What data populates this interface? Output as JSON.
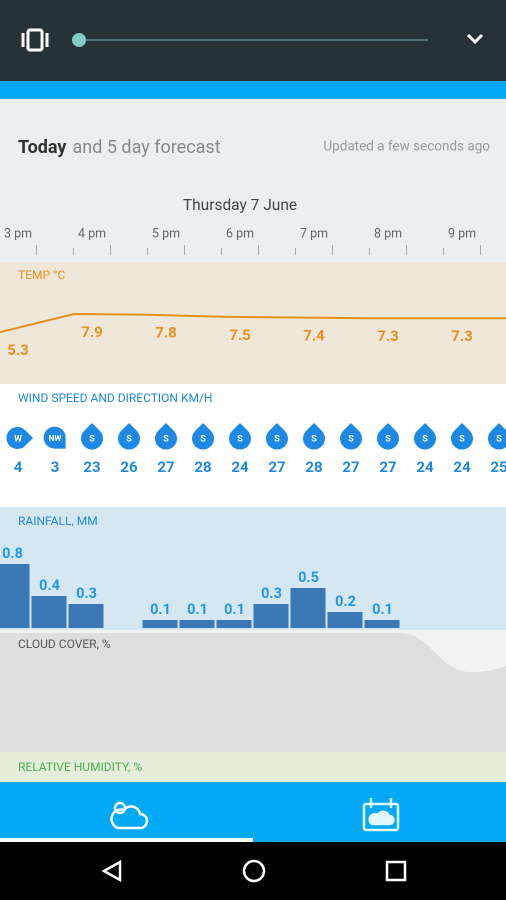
{
  "header": {
    "title_bold": "Today",
    "title_rest": "and 5 day forecast",
    "updated": "Updated a few seconds ago"
  },
  "date": "Thursday 7 June",
  "times": [
    "3 pm",
    "4 pm",
    "5 pm",
    "6 pm",
    "7 pm",
    "8 pm",
    "9 pm"
  ],
  "temperature": {
    "label": "TEMP °C",
    "values": [
      5.3,
      7.9,
      7.8,
      7.5,
      7.4,
      7.3,
      7.3
    ]
  },
  "wind": {
    "label": "WIND SPEED AND DIRECTION KM/H",
    "directions": [
      "W",
      "NW",
      "S",
      "S",
      "S",
      "S",
      "S",
      "S",
      "S",
      "S",
      "S",
      "S",
      "S",
      "S"
    ],
    "speeds": [
      4,
      3,
      23,
      26,
      27,
      28,
      24,
      27,
      28,
      27,
      27,
      24,
      24,
      25
    ]
  },
  "rainfall": {
    "label": "RAINFALL, MM",
    "values": [
      0.8,
      0.4,
      0.3,
      null,
      0.1,
      0.1,
      0.1,
      0.3,
      0.5,
      0.2,
      0.1
    ]
  },
  "cloud_cover": {
    "label": "CLOUD COVER, %"
  },
  "humidity": {
    "label": "RELATIVE HUMIDITY, %"
  }
}
